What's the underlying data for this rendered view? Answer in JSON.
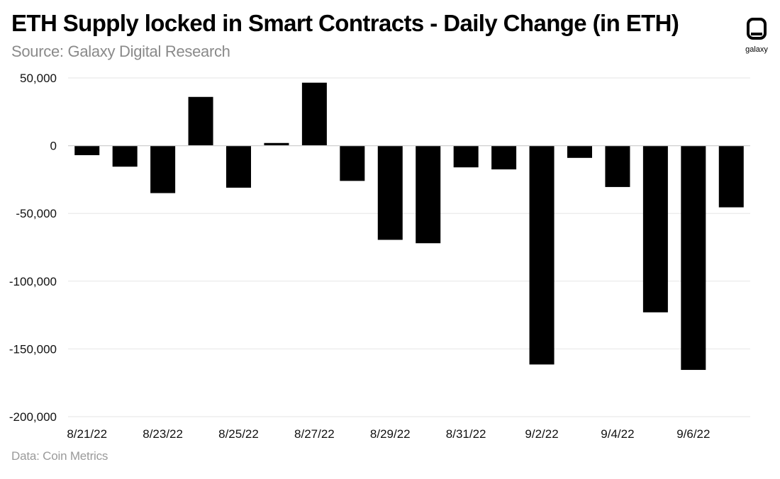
{
  "header": {
    "title": "ETH Supply locked in Smart Contracts - Daily Change (in ETH)",
    "subtitle": "Source: Galaxy Digital Research"
  },
  "footer": {
    "note": "Data: Coin Metrics"
  },
  "logo": {
    "text": "galaxy",
    "icon": "galaxy-logo-icon"
  },
  "colors": {
    "bar": "#000000",
    "grid": "#e6e6e6",
    "zero_line": "#cfcfcf",
    "text": "#111111"
  },
  "chart_data": {
    "type": "bar",
    "title": "ETH Supply locked in Smart Contracts - Daily Change (in ETH)",
    "xlabel": "",
    "ylabel": "",
    "ylim": [
      -200000,
      50000
    ],
    "yticks": [
      50000,
      0,
      -50000,
      -100000,
      -150000,
      -200000
    ],
    "ytick_labels": [
      "50,000",
      "0",
      "-50,000",
      "-100,000",
      "-150,000",
      "-200,000"
    ],
    "grid": true,
    "legend": "none",
    "categories": [
      "8/21/22",
      "8/22/22",
      "8/23/22",
      "8/24/22",
      "8/25/22",
      "8/26/22",
      "8/27/22",
      "8/28/22",
      "8/29/22",
      "8/30/22",
      "8/31/22",
      "9/1/22",
      "9/2/22",
      "9/3/22",
      "9/4/22",
      "9/5/22",
      "9/6/22",
      "9/7/22"
    ],
    "xtick_labels": [
      "8/21/22",
      "",
      "8/23/22",
      "",
      "8/25/22",
      "",
      "8/27/22",
      "",
      "8/29/22",
      "",
      "8/31/22",
      "",
      "9/2/22",
      "",
      "9/4/22",
      "",
      "9/6/22",
      ""
    ],
    "values": [
      -7000,
      -15500,
      -35000,
      36000,
      -31000,
      2000,
      46500,
      -26000,
      -69500,
      -72000,
      -16000,
      -17500,
      -161500,
      -9000,
      -30500,
      -123000,
      -165500,
      -45500
    ]
  }
}
